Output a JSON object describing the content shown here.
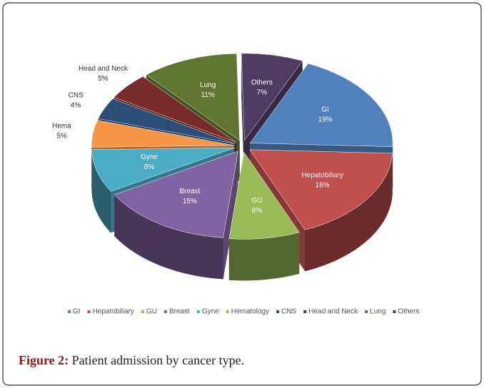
{
  "chart_data": {
    "type": "pie",
    "categories": [
      "GI",
      "Hepatobiliary",
      "GU",
      "Breast",
      "Gyne",
      "Hematology",
      "CNS",
      "Head and Neck",
      "Lung",
      "Others"
    ],
    "slice_labels": [
      "GI",
      "Hepatobiliary",
      "GU",
      "Breast",
      "Gyne",
      "Hema",
      "CNS",
      "Head and Neck",
      "Lung",
      "Others"
    ],
    "values": [
      19,
      18,
      8,
      15,
      8,
      5,
      4,
      5,
      11,
      7
    ],
    "value_labels": [
      "19%",
      "18%",
      "8%",
      "15%",
      "8%",
      "5%",
      "4%",
      "5%",
      "11%",
      "7%"
    ],
    "colors": [
      "#4f81bd",
      "#c0504d",
      "#9bbb59",
      "#8064a2",
      "#4bacc6",
      "#f79646",
      "#2c4d75",
      "#772c2a",
      "#5f7530",
      "#4d3b62"
    ],
    "legend": "bottom"
  },
  "caption": {
    "label": "Figure 2:",
    "text": "Patient admission by cancer type."
  }
}
